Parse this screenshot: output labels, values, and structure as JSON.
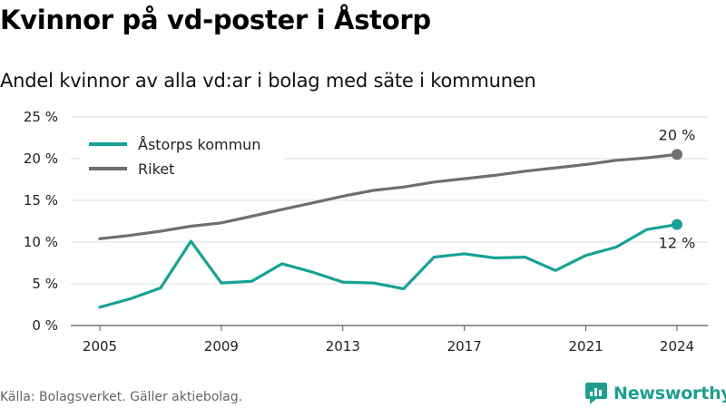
{
  "title": "Kvinnor på vd-poster i Åstorp",
  "subtitle": "Andel kvinnor av alla vd:ar i bolag med säte i kommunen",
  "source": "Källa: Bolagsverket. Gäller aktiebolag.",
  "brand": {
    "name": "Newsworthy",
    "icon": "newsworthy-logo-icon",
    "color": "#1f9e8f"
  },
  "chart_data": {
    "type": "line",
    "x": [
      2005,
      2006,
      2007,
      2008,
      2009,
      2010,
      2011,
      2012,
      2013,
      2014,
      2015,
      2016,
      2017,
      2018,
      2019,
      2020,
      2021,
      2022,
      2023,
      2024
    ],
    "xticks": [
      {
        "value": 2005,
        "label": "2005"
      },
      {
        "value": 2009,
        "label": "2009"
      },
      {
        "value": 2013,
        "label": "2013"
      },
      {
        "value": 2017,
        "label": "2017"
      },
      {
        "value": 2021,
        "label": "2021"
      },
      {
        "value": 2024,
        "label": "2024"
      }
    ],
    "yticks": [
      {
        "value": 0,
        "label": "0 %"
      },
      {
        "value": 5,
        "label": "5 %"
      },
      {
        "value": 10,
        "label": "10 %"
      },
      {
        "value": 15,
        "label": "15 %"
      },
      {
        "value": 20,
        "label": "20 %"
      },
      {
        "value": 25,
        "label": "25 %"
      }
    ],
    "ylim": [
      0,
      25
    ],
    "xlim": [
      2005,
      2024
    ],
    "grid": "horizontal",
    "legend_position": "top-left",
    "series": [
      {
        "name": "Åstorps kommun",
        "color": "#17a295",
        "values": [
          2.2,
          3.2,
          4.5,
          10.1,
          5.1,
          5.3,
          7.4,
          6.4,
          5.2,
          5.1,
          4.4,
          8.2,
          8.6,
          8.1,
          8.2,
          6.6,
          8.4,
          9.4,
          11.5,
          12.1
        ],
        "end_label": "12 %"
      },
      {
        "name": "Riket",
        "color": "#6f6e73",
        "values": [
          10.4,
          10.8,
          11.3,
          11.9,
          12.3,
          13.1,
          13.9,
          14.7,
          15.5,
          16.2,
          16.6,
          17.2,
          17.6,
          18.0,
          18.5,
          18.9,
          19.3,
          19.8,
          20.1,
          20.5
        ],
        "end_label": "20 %"
      }
    ]
  }
}
